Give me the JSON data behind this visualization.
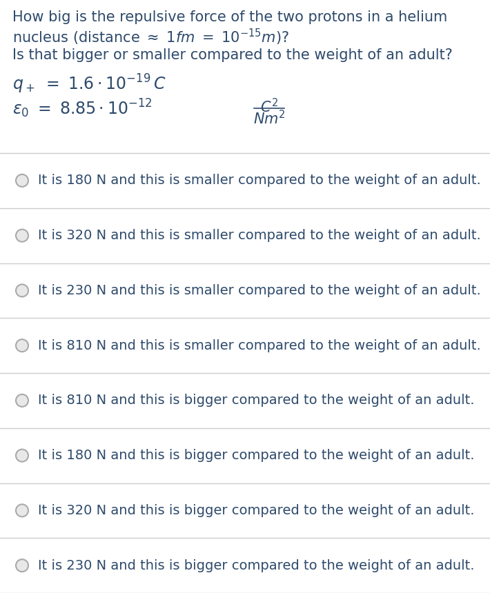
{
  "bg_color": "#ffffff",
  "text_color": "#2e4a6b",
  "options": [
    "It is 180 N and this is smaller compared to the weight of an adult.",
    "It is 320 N and this is smaller compared to the weight of an adult.",
    "It is 230 N and this is smaller compared to the weight of an adult.",
    "It is 810 N and this is smaller compared to the weight of an adult.",
    "It is 810 N and this is bigger compared to the weight of an adult.",
    "It is 180 N and this is bigger compared to the weight of an adult.",
    "It is 320 N and this is bigger compared to the weight of an adult.",
    "It is 230 N and this is bigger compared to the weight of an adult."
  ],
  "separator_color": "#cccccc",
  "circle_edge_color": "#aaaaaa",
  "circle_face_color": "#e8e8e8",
  "font_size_question": 15,
  "font_size_formula": 16,
  "font_size_option": 14
}
